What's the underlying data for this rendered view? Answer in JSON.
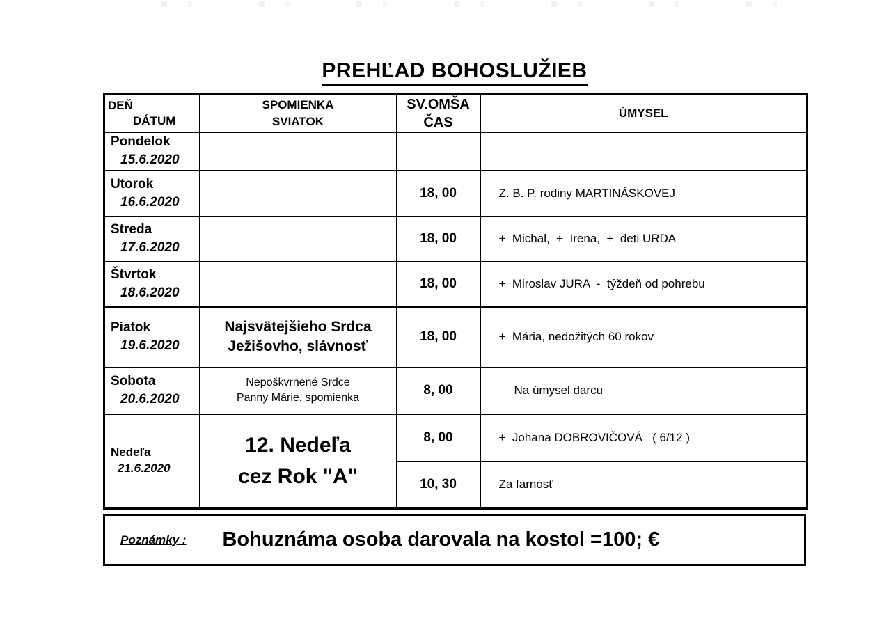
{
  "page": {
    "title": "PREHĽAD BOHOSLUŽIEB"
  },
  "table": {
    "header": {
      "day_line1": "DEŇ",
      "day_line2": "DÁTUM",
      "feast_line1": "SPOMIENKA",
      "feast_line2": "SVIATOK",
      "time_line1": "SV.OMŠA",
      "time_line2": "ČAS",
      "intention": "ÚMYSEL"
    },
    "rows": [
      {
        "day": "Pondelok",
        "date": "15.6.2020",
        "feast1": "",
        "feast2": "",
        "time": "",
        "intention": ""
      },
      {
        "day": "Utorok",
        "date": "16.6.2020",
        "feast1": "",
        "feast2": "",
        "time": "18, 00",
        "intention": "Z. B. P. rodiny MARTINÁSKOVEJ"
      },
      {
        "day": "Streda",
        "date": "17.6.2020",
        "feast1": "",
        "feast2": "",
        "time": "18, 00",
        "intention": "+  Michal,  +  Irena,  +  deti URDA"
      },
      {
        "day": "Štvrtok",
        "date": "18.6.2020",
        "feast1": "",
        "feast2": "",
        "time": "18, 00",
        "intention": "+  Miroslav JURA  -  týždeň od pohrebu"
      },
      {
        "day": "Piatok",
        "date": "19.6.2020",
        "feast1": "Najsvätejšieho Srdca",
        "feast2": "Ježišovho, slávnosť",
        "time": "18, 00",
        "intention": "+  Mária, nedožitých 60 rokov"
      },
      {
        "day": "Sobota",
        "date": "20.6.2020",
        "feast1": "Nepoškvrnené Srdce",
        "feast2": "Panny Márie, spomienka",
        "time": "8, 00",
        "intention": "Na úmysel darcu"
      },
      {
        "day": "Nedeľa",
        "date": "21.6.2020",
        "feast1": "12. Nedeľa",
        "feast2": "cez Rok  \"A\"",
        "time1": "8, 00",
        "intention1": "+  Johana DOBROVIČOVÁ   ( 6/12 )",
        "time2": "10, 30",
        "intention2": "Za farnosť"
      }
    ]
  },
  "notes": {
    "label": "Poznámky :",
    "text": "Bohuznáma osoba darovala na kostol =100; €"
  }
}
